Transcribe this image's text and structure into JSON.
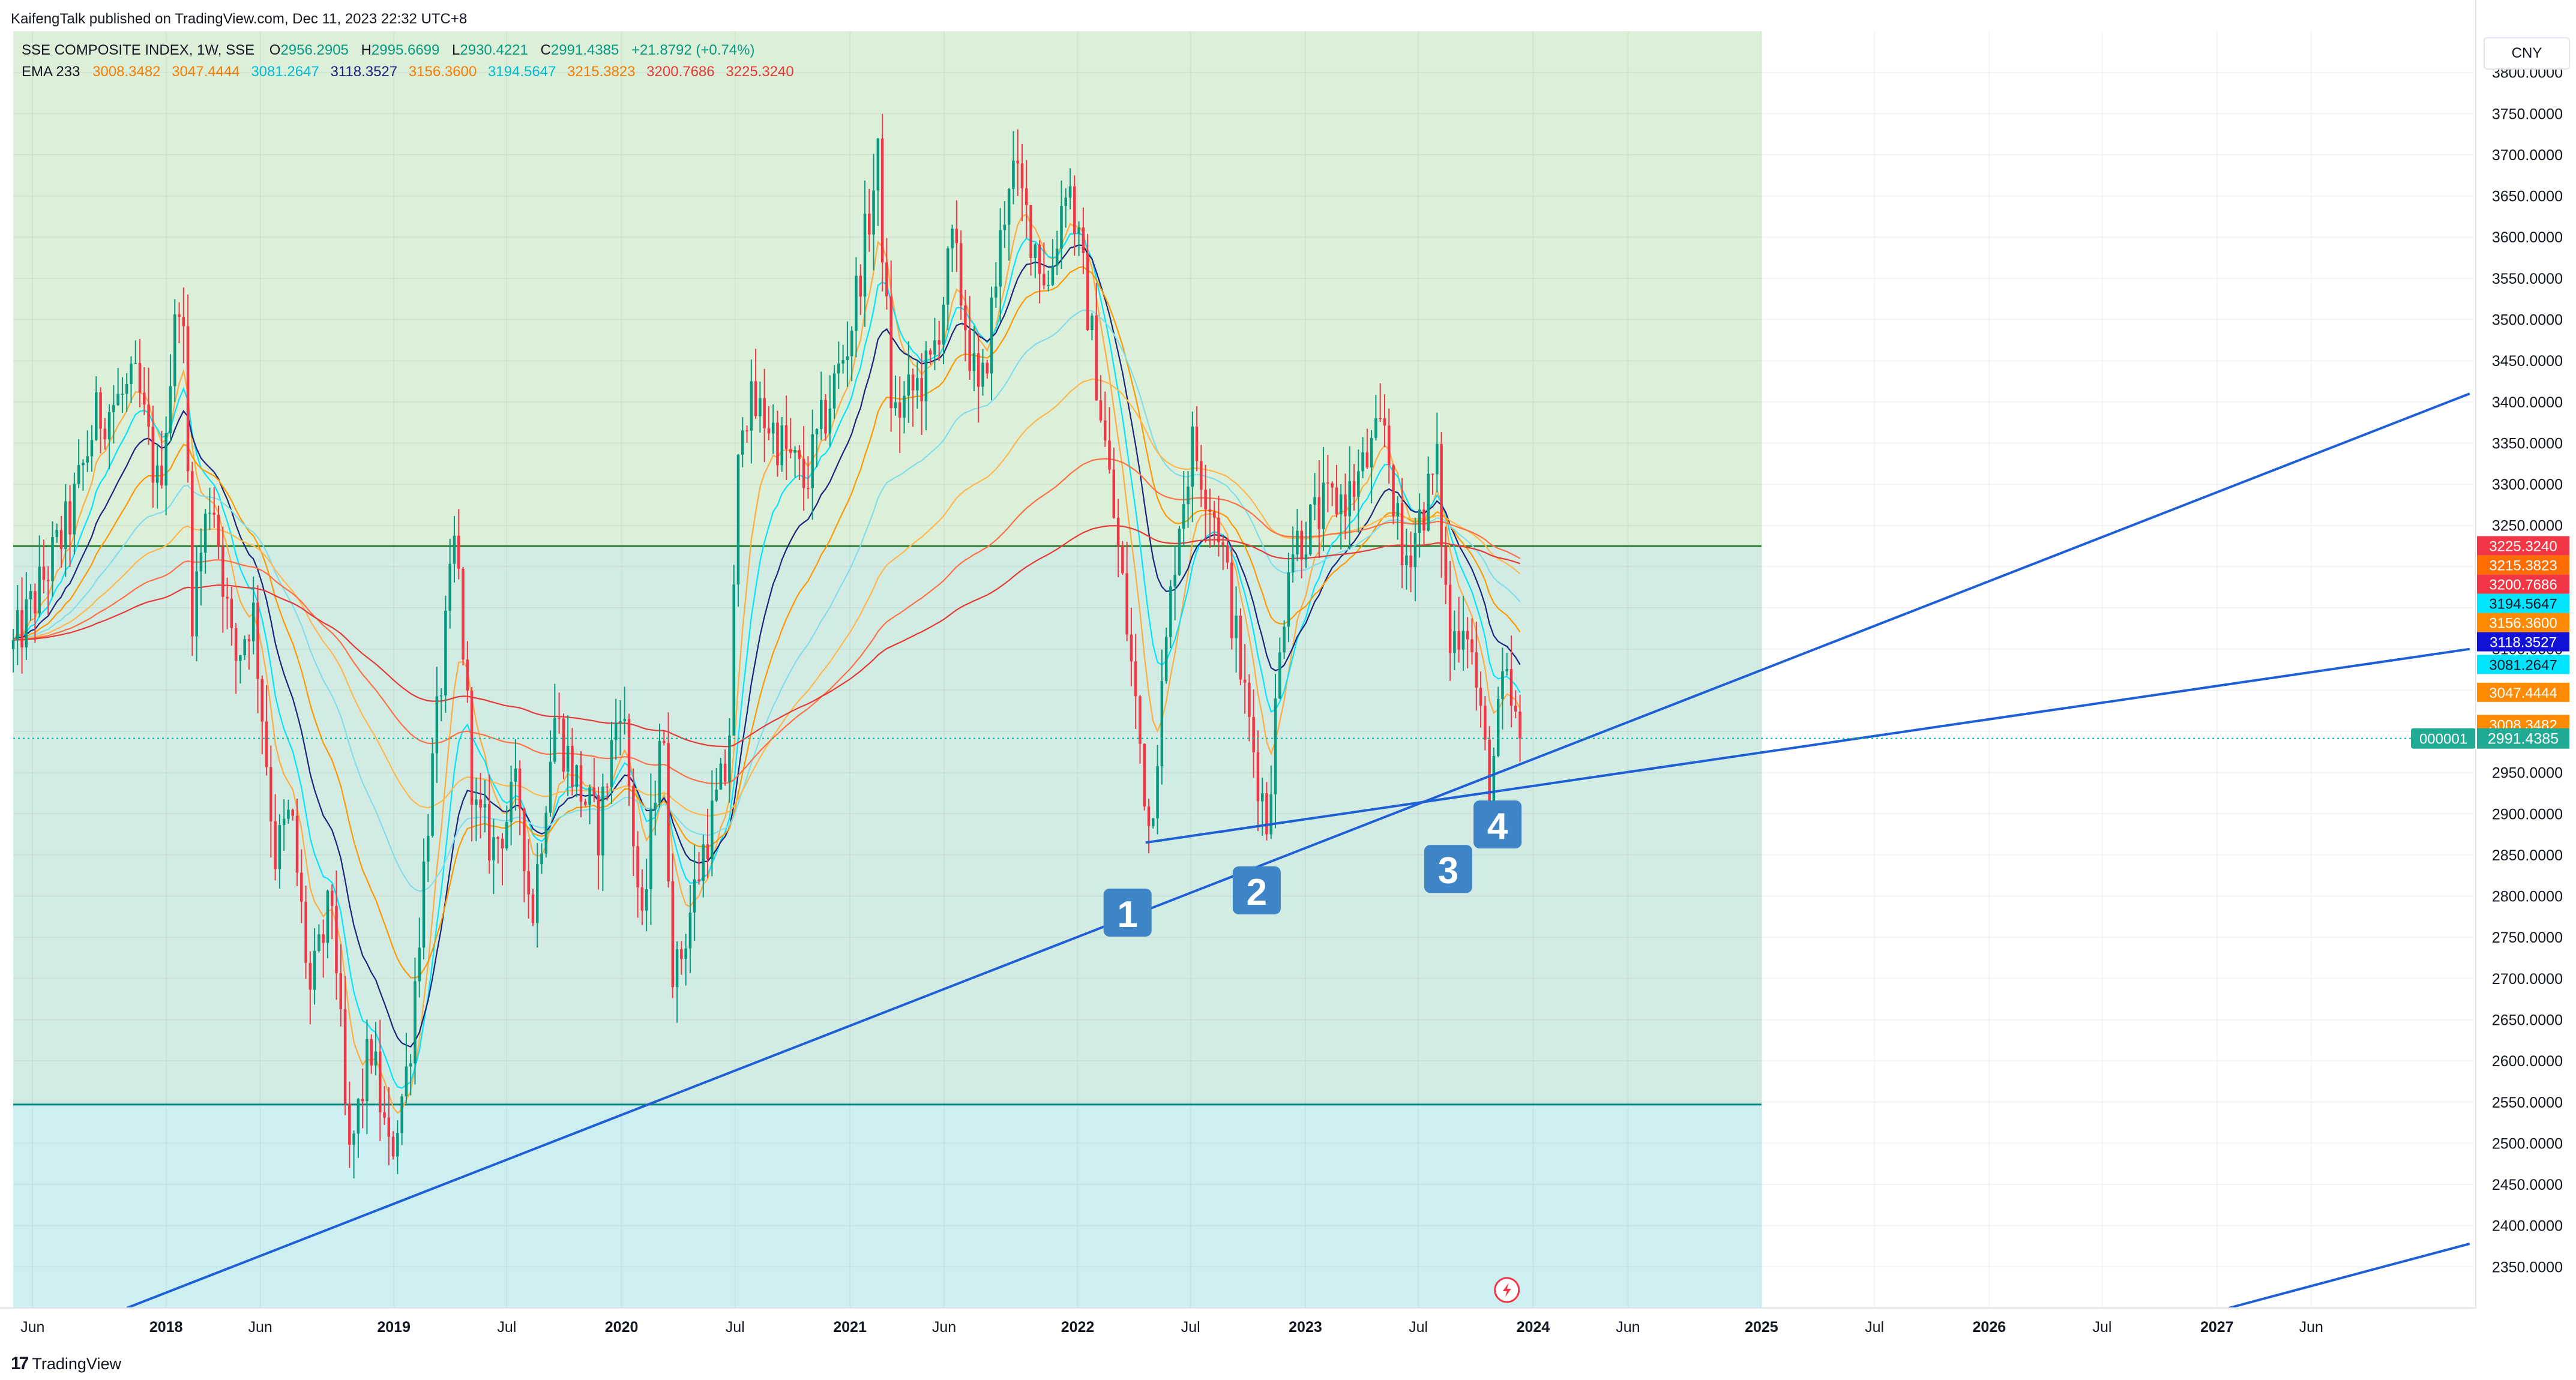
{
  "header": {
    "published": "KaifengTalk published on TradingView.com, Dec 11, 2023 22:32 UTC+8",
    "symbol": "SSE COMPOSITE INDEX, 1W, SSE",
    "open_label": "O",
    "open": "2956.2905",
    "high_label": "H",
    "high": "2995.6699",
    "low_label": "L",
    "low": "2930.4221",
    "close_label": "C",
    "close": "2991.4385",
    "change": "+21.8792 (+0.74%)",
    "ema_label": "EMA 233",
    "ema_values": [
      {
        "text": "3008.3482",
        "color": "#f57c00"
      },
      {
        "text": "3047.4444",
        "color": "#f57c00"
      },
      {
        "text": "3081.2647",
        "color": "#00bcd4"
      },
      {
        "text": "3118.3527",
        "color": "#1a237e"
      },
      {
        "text": "3156.3600",
        "color": "#f57c00"
      },
      {
        "text": "3194.5647",
        "color": "#00bcd4"
      },
      {
        "text": "3215.3823",
        "color": "#f57c00"
      },
      {
        "text": "3200.7686",
        "color": "#e53935"
      },
      {
        "text": "3225.3240",
        "color": "#e53935"
      }
    ]
  },
  "currency": "CNY",
  "footer": {
    "brand": "TradingView",
    "mark": "17"
  },
  "chart_data": {
    "type": "candlestick",
    "title": "SSE COMPOSITE INDEX, 1W, SSE",
    "ylim": [
      2300,
      3850
    ],
    "y_ticks": [
      "2350.0000",
      "2400.0000",
      "2450.0000",
      "2500.0000",
      "2550.0000",
      "2600.0000",
      "2650.0000",
      "2700.0000",
      "2750.0000",
      "2800.0000",
      "2850.0000",
      "2900.0000",
      "2950.0000",
      "3000.0000",
      "3050.0000",
      "3100.0000",
      "3150.0000",
      "3200.0000",
      "3250.0000",
      "3300.0000",
      "3350.0000",
      "3400.0000",
      "3450.0000",
      "3500.0000",
      "3550.0000",
      "3600.0000",
      "3650.0000",
      "3700.0000",
      "3750.0000",
      "3800.0000"
    ],
    "x_range": [
      "2017-05-01",
      "2028-02-15"
    ],
    "x_ticks": [
      {
        "label": "Jun",
        "date": "2017-06-01",
        "bold": false
      },
      {
        "label": "2018",
        "date": "2018-01-01",
        "bold": true
      },
      {
        "label": "Jun",
        "date": "2018-06-01",
        "bold": false
      },
      {
        "label": "2019",
        "date": "2019-01-01",
        "bold": true
      },
      {
        "label": "Jul",
        "date": "2019-07-01",
        "bold": false
      },
      {
        "label": "2020",
        "date": "2020-01-01",
        "bold": true
      },
      {
        "label": "Jul",
        "date": "2020-07-01",
        "bold": false
      },
      {
        "label": "2021",
        "date": "2021-01-01",
        "bold": true
      },
      {
        "label": "Jun",
        "date": "2021-06-01",
        "bold": false
      },
      {
        "label": "2022",
        "date": "2022-01-01",
        "bold": true
      },
      {
        "label": "Jul",
        "date": "2022-07-01",
        "bold": false
      },
      {
        "label": "2023",
        "date": "2023-01-01",
        "bold": true
      },
      {
        "label": "Jul",
        "date": "2023-07-01",
        "bold": false
      },
      {
        "label": "2024",
        "date": "2024-01-01",
        "bold": true
      },
      {
        "label": "Jun",
        "date": "2024-06-01",
        "bold": false
      },
      {
        "label": "2025",
        "date": "2025-01-01",
        "bold": true
      },
      {
        "label": "Jul",
        "date": "2025-07-01",
        "bold": false
      },
      {
        "label": "2026",
        "date": "2026-01-01",
        "bold": true
      },
      {
        "label": "Jul",
        "date": "2026-07-01",
        "bold": false
      },
      {
        "label": "2027",
        "date": "2027-01-01",
        "bold": true
      },
      {
        "label": "Jun",
        "date": "2027-06-01",
        "bold": false
      }
    ],
    "shaded_zones": [
      {
        "from": 3225,
        "to": 3850,
        "x_end": "2025-01-01",
        "color": "#dcefd9"
      },
      {
        "from": 2547,
        "to": 3225,
        "x_end": "2025-01-01",
        "color": "#d3ece3"
      },
      {
        "from": 2300,
        "to": 2547,
        "x_end": "2025-01-01",
        "color": "#cdeff1"
      }
    ],
    "horizontal_lines": [
      {
        "price": 3225,
        "color": "#2e7d32"
      },
      {
        "price": 2547,
        "color": "#00897b"
      }
    ],
    "trendlines": [
      {
        "from": {
          "date": "2017-10-30",
          "price": 2300
        },
        "to": {
          "date": "2028-02-10",
          "price": 3410
        },
        "color": "#1e5fd6"
      },
      {
        "from": {
          "date": "2022-04-20",
          "price": 2865
        },
        "to": {
          "date": "2028-02-10",
          "price": 3100
        },
        "color": "#1e5fd6"
      },
      {
        "from": {
          "date": "2027-01-20",
          "price": 2300
        },
        "to": {
          "date": "2028-02-10",
          "price": 2378
        },
        "color": "#1e5fd6"
      }
    ],
    "markers": [
      {
        "label": "1",
        "date": "2022-03-22",
        "price": 2780
      },
      {
        "label": "2",
        "date": "2022-10-15",
        "price": 2807
      },
      {
        "label": "3",
        "date": "2023-08-18",
        "price": 2833
      },
      {
        "label": "4",
        "date": "2023-11-05",
        "price": 2887
      }
    ],
    "last_price": {
      "value": 2991.4385,
      "label": "2991.4385",
      "symbol_tag": "000001",
      "color": "#22ab94"
    },
    "ema_labels": [
      {
        "value": 3225.324,
        "label": "3225.3240",
        "color": "#f23645"
      },
      {
        "value": 3215.3823,
        "label": "3215.3823",
        "color": "#ff6d00"
      },
      {
        "value": 3200.7686,
        "label": "3200.7686",
        "color": "#f23645"
      },
      {
        "value": 3194.5647,
        "label": "3194.5647",
        "color": "#00e5ff"
      },
      {
        "value": 3156.36,
        "label": "3156.3600",
        "color": "#ff8a00"
      },
      {
        "value": 3118.3527,
        "label": "3118.3527",
        "color": "#1212d6"
      },
      {
        "value": 3081.2647,
        "label": "3081.2647",
        "color": "#00e5ff"
      },
      {
        "value": 3047.4444,
        "label": "3047.4444",
        "color": "#ff8a00"
      },
      {
        "value": 3008.3482,
        "label": "3008.3482",
        "color": "#ff8a00"
      }
    ],
    "ema_lines": [
      {
        "period": 8,
        "color": "#ffab40"
      },
      {
        "period": 13,
        "color": "#00e5ff"
      },
      {
        "period": 21,
        "color": "#1a237e"
      },
      {
        "period": 34,
        "color": "#ff9800"
      },
      {
        "period": 55,
        "color": "#80deea"
      },
      {
        "period": 89,
        "color": "#ffb74d"
      },
      {
        "period": 144,
        "color": "#ff7043"
      },
      {
        "period": 233,
        "color": "#e53935"
      }
    ],
    "price_path": [
      [
        "2017-05-01",
        3100
      ],
      [
        "2017-06-01",
        3155
      ],
      [
        "2017-08-01",
        3260
      ],
      [
        "2017-09-10",
        3380
      ],
      [
        "2017-11-15",
        3420
      ],
      [
        "2017-12-20",
        3290
      ],
      [
        "2018-01-25",
        3560
      ],
      [
        "2018-02-12",
        3150
      ],
      [
        "2018-03-15",
        3300
      ],
      [
        "2018-04-20",
        3080
      ],
      [
        "2018-05-20",
        3150
      ],
      [
        "2018-06-25",
        2850
      ],
      [
        "2018-07-20",
        2900
      ],
      [
        "2018-08-20",
        2680
      ],
      [
        "2018-09-25",
        2800
      ],
      [
        "2018-10-20",
        2470
      ],
      [
        "2018-11-25",
        2620
      ],
      [
        "2018-12-25",
        2480
      ],
      [
        "2019-01-25",
        2600
      ],
      [
        "2019-02-25",
        2900
      ],
      [
        "2019-04-10",
        3240
      ],
      [
        "2019-05-10",
        2900
      ],
      [
        "2019-06-10",
        2860
      ],
      [
        "2019-07-20",
        2930
      ],
      [
        "2019-08-10",
        2770
      ],
      [
        "2019-09-15",
        3020
      ],
      [
        "2019-10-15",
        2950
      ],
      [
        "2019-11-25",
        2880
      ],
      [
        "2019-12-31",
        3050
      ],
      [
        "2020-02-03",
        2750
      ],
      [
        "2020-03-05",
        3030
      ],
      [
        "2020-03-25",
        2690
      ],
      [
        "2020-05-15",
        2870
      ],
      [
        "2020-06-20",
        2960
      ],
      [
        "2020-07-10",
        3400
      ],
      [
        "2020-08-20",
        3380
      ],
      [
        "2020-10-20",
        3300
      ],
      [
        "2020-12-31",
        3480
      ],
      [
        "2021-02-15",
        3690
      ],
      [
        "2021-03-10",
        3380
      ],
      [
        "2021-05-10",
        3440
      ],
      [
        "2021-06-15",
        3590
      ],
      [
        "2021-07-28",
        3390
      ],
      [
        "2021-09-15",
        3690
      ],
      [
        "2021-11-15",
        3540
      ],
      [
        "2021-12-15",
        3680
      ],
      [
        "2022-01-20",
        3500
      ],
      [
        "2022-03-15",
        3170
      ],
      [
        "2022-04-26",
        2880
      ],
      [
        "2022-06-10",
        3250
      ],
      [
        "2022-07-05",
        3350
      ],
      [
        "2022-08-15",
        3250
      ],
      [
        "2022-09-30",
        3020
      ],
      [
        "2022-10-31",
        2890
      ],
      [
        "2022-12-05",
        3220
      ],
      [
        "2023-01-31",
        3270
      ],
      [
        "2023-03-15",
        3290
      ],
      [
        "2023-05-09",
        3370
      ],
      [
        "2023-06-05",
        3200
      ],
      [
        "2023-07-31",
        3320
      ],
      [
        "2023-08-20",
        3100
      ],
      [
        "2023-09-15",
        3150
      ],
      [
        "2023-10-23",
        2930
      ],
      [
        "2023-11-15",
        3060
      ],
      [
        "2023-12-11",
        2991
      ]
    ]
  }
}
